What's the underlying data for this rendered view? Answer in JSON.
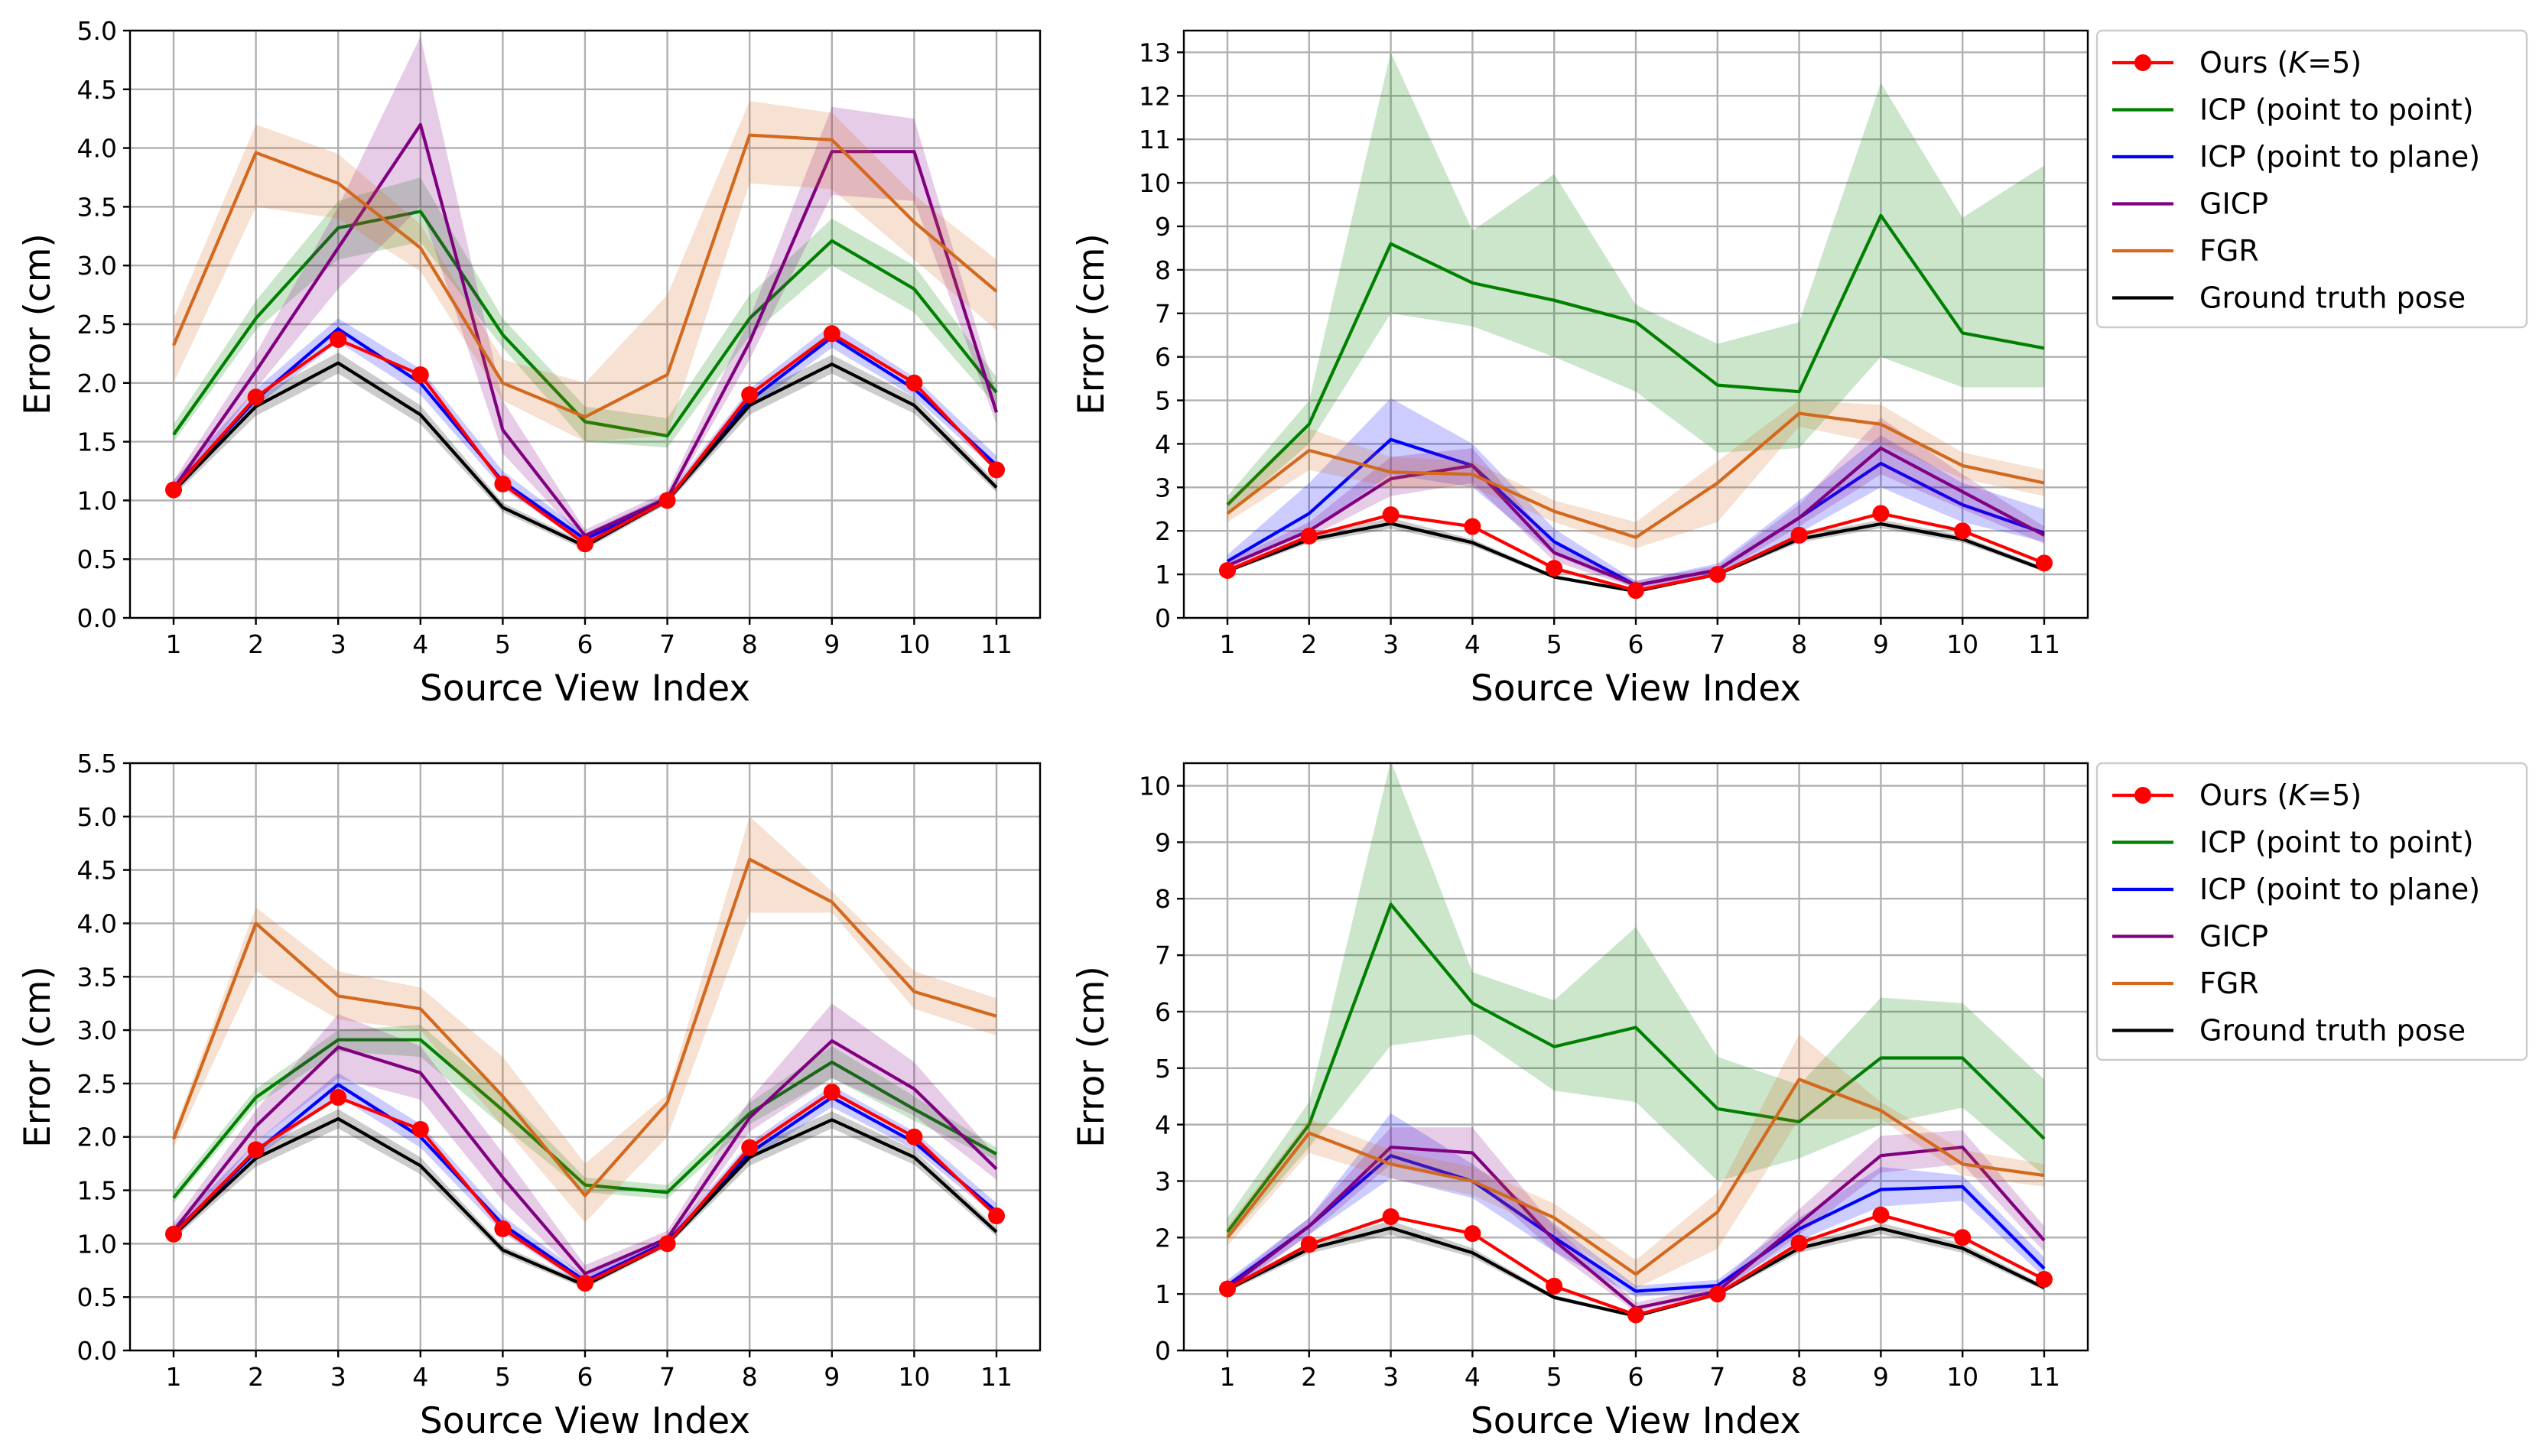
{
  "figure": {
    "type": "line",
    "panel_count": 4
  },
  "colors": {
    "Ours (K=5)": "#ff0000",
    "ICP (point to point)": "#008000",
    "ICP (point to plane)": "#0000ff",
    "GICP": "#800080",
    "FGR": "#d2691e",
    "Ground truth pose": "#000000"
  },
  "legend_entries": [
    {
      "key": "ours",
      "prefix": "Ours (",
      "italic": "K",
      "suffix": "=5)",
      "color": "#ff0000",
      "marker": "circle"
    },
    {
      "key": "icp_pp",
      "label": "ICP (point to point)",
      "color": "#008000"
    },
    {
      "key": "icp_pl",
      "label": "ICP (point to plane)",
      "color": "#0000ff"
    },
    {
      "key": "gicp",
      "label": "GICP",
      "color": "#800080"
    },
    {
      "key": "fgr",
      "label": "FGR",
      "color": "#d2691e"
    },
    {
      "key": "gt",
      "label": "Ground truth pose",
      "color": "#000000"
    }
  ],
  "chart_data": [
    {
      "type": "line",
      "position": "top-left",
      "xlabel": "Source View Index",
      "ylabel": "Error (cm)",
      "x": [
        1,
        2,
        3,
        4,
        5,
        6,
        7,
        8,
        9,
        10,
        11
      ],
      "ylim": [
        0,
        5.0
      ],
      "yticks": [
        "0.0",
        "0.5",
        "1.0",
        "1.5",
        "2.0",
        "2.5",
        "3.0",
        "3.5",
        "4.0",
        "4.5",
        "5.0"
      ],
      "legend": false,
      "series": [
        {
          "name": "ICP (point to point)",
          "values": [
            1.56,
            2.55,
            3.32,
            3.46,
            2.41,
            1.67,
            1.55,
            2.55,
            3.21,
            2.8,
            1.92
          ],
          "band_lower": [
            1.5,
            2.45,
            3.05,
            3.2,
            2.3,
            1.5,
            1.45,
            2.4,
            3.0,
            2.6,
            1.8
          ],
          "band_upper": [
            1.65,
            2.7,
            3.55,
            3.75,
            2.55,
            1.8,
            1.7,
            2.75,
            3.4,
            3.0,
            2.05
          ]
        },
        {
          "name": "ICP (point to plane)",
          "values": [
            1.1,
            1.86,
            2.46,
            2.0,
            1.16,
            0.67,
            1.0,
            1.85,
            2.39,
            1.95,
            1.3
          ],
          "band_lower": [
            1.05,
            1.8,
            2.35,
            1.9,
            1.1,
            0.62,
            0.97,
            1.78,
            2.3,
            1.88,
            1.25
          ],
          "band_upper": [
            1.17,
            1.95,
            2.55,
            2.12,
            1.25,
            0.72,
            1.05,
            1.95,
            2.5,
            2.05,
            1.38
          ]
        },
        {
          "name": "GICP",
          "values": [
            1.1,
            2.1,
            3.15,
            4.2,
            1.6,
            0.7,
            1.02,
            2.35,
            3.97,
            3.97,
            1.75
          ],
          "band_lower": [
            1.05,
            1.95,
            2.8,
            3.5,
            1.4,
            0.65,
            0.98,
            2.2,
            3.6,
            3.55,
            1.65
          ],
          "band_upper": [
            1.17,
            2.25,
            3.5,
            4.95,
            1.85,
            0.75,
            1.08,
            2.55,
            4.35,
            4.25,
            1.9
          ]
        },
        {
          "name": "FGR",
          "values": [
            2.32,
            3.96,
            3.7,
            3.15,
            2.0,
            1.71,
            2.07,
            4.11,
            4.07,
            3.37,
            2.78
          ],
          "band_lower": [
            2.0,
            3.5,
            3.4,
            2.95,
            1.85,
            1.5,
            1.55,
            3.7,
            3.65,
            3.05,
            2.45
          ],
          "band_upper": [
            2.55,
            4.2,
            3.95,
            3.35,
            2.2,
            2.0,
            2.75,
            4.4,
            4.3,
            3.6,
            3.05
          ]
        },
        {
          "name": "Ground truth pose",
          "values": [
            1.08,
            1.8,
            2.17,
            1.73,
            0.94,
            0.61,
            1.0,
            1.81,
            2.16,
            1.81,
            1.11
          ],
          "band_lower": [
            1.04,
            1.72,
            2.08,
            1.65,
            0.9,
            0.58,
            0.97,
            1.73,
            2.08,
            1.74,
            1.07
          ],
          "band_upper": [
            1.12,
            1.88,
            2.26,
            1.81,
            0.98,
            0.64,
            1.03,
            1.89,
            2.24,
            1.88,
            1.15
          ]
        },
        {
          "name": "Ours (K=5)",
          "values": [
            1.09,
            1.88,
            2.37,
            2.07,
            1.14,
            0.63,
            1.0,
            1.9,
            2.42,
            2.0,
            1.26
          ]
        }
      ]
    },
    {
      "type": "line",
      "position": "top-right",
      "xlabel": "Source View Index",
      "ylabel": "Error (cm)",
      "x": [
        1,
        2,
        3,
        4,
        5,
        6,
        7,
        8,
        9,
        10,
        11
      ],
      "ylim": [
        0,
        13.5
      ],
      "yticks": [
        "0",
        "1",
        "2",
        "3",
        "4",
        "5",
        "6",
        "7",
        "8",
        "9",
        "10",
        "11",
        "12",
        "13"
      ],
      "legend": true,
      "series": [
        {
          "name": "ICP (point to point)",
          "values": [
            2.6,
            4.45,
            8.6,
            7.7,
            7.3,
            6.8,
            5.35,
            5.2,
            9.25,
            6.55,
            6.2
          ],
          "band_lower": [
            2.4,
            4.0,
            7.0,
            6.7,
            6.0,
            5.2,
            3.8,
            3.9,
            6.0,
            5.3,
            5.3
          ],
          "band_upper": [
            2.8,
            5.0,
            13.0,
            8.9,
            10.2,
            7.2,
            6.3,
            6.8,
            12.3,
            9.2,
            10.4
          ]
        },
        {
          "name": "ICP (point to plane)",
          "values": [
            1.3,
            2.4,
            4.1,
            3.5,
            1.75,
            0.75,
            1.1,
            2.3,
            3.55,
            2.6,
            1.95
          ],
          "band_lower": [
            1.15,
            2.0,
            3.3,
            3.0,
            1.45,
            0.68,
            1.0,
            1.95,
            3.0,
            2.2,
            1.75
          ],
          "band_upper": [
            1.45,
            3.1,
            5.05,
            4.0,
            2.05,
            0.85,
            1.25,
            2.7,
            4.2,
            3.1,
            2.5
          ]
        },
        {
          "name": "GICP",
          "values": [
            1.2,
            2.0,
            3.2,
            3.5,
            1.5,
            0.75,
            1.1,
            2.3,
            3.9,
            2.9,
            1.9
          ],
          "band_lower": [
            1.1,
            1.85,
            2.8,
            3.1,
            1.3,
            0.68,
            1.0,
            2.1,
            3.3,
            2.5,
            1.7
          ],
          "band_upper": [
            1.3,
            2.2,
            3.7,
            3.9,
            1.7,
            0.85,
            1.2,
            2.6,
            4.6,
            3.3,
            2.1
          ]
        },
        {
          "name": "FGR",
          "values": [
            2.4,
            3.85,
            3.35,
            3.3,
            2.45,
            1.85,
            3.1,
            4.7,
            4.45,
            3.5,
            3.1
          ],
          "band_lower": [
            2.2,
            3.4,
            3.0,
            3.0,
            2.2,
            1.6,
            2.2,
            4.4,
            4.0,
            3.2,
            2.8
          ],
          "band_upper": [
            2.7,
            4.35,
            3.7,
            3.6,
            2.7,
            2.2,
            3.6,
            5.0,
            4.9,
            3.8,
            3.4
          ]
        },
        {
          "name": "Ground truth pose",
          "values": [
            1.08,
            1.8,
            2.17,
            1.73,
            0.94,
            0.61,
            1.0,
            1.81,
            2.16,
            1.81,
            1.11
          ],
          "band_lower": [
            1.03,
            1.72,
            2.05,
            1.65,
            0.9,
            0.58,
            0.96,
            1.73,
            2.06,
            1.73,
            1.06
          ],
          "band_upper": [
            1.13,
            1.88,
            2.3,
            1.81,
            0.98,
            0.64,
            1.04,
            1.89,
            2.26,
            1.89,
            1.16
          ]
        },
        {
          "name": "Ours (K=5)",
          "values": [
            1.09,
            1.88,
            2.37,
            2.1,
            1.14,
            0.63,
            1.0,
            1.9,
            2.4,
            2.0,
            1.26
          ]
        }
      ]
    },
    {
      "type": "line",
      "position": "bottom-left",
      "xlabel": "Source View Index",
      "ylabel": "Error (cm)",
      "x": [
        1,
        2,
        3,
        4,
        5,
        6,
        7,
        8,
        9,
        10,
        11
      ],
      "ylim": [
        0,
        5.5
      ],
      "yticks": [
        "0.0",
        "0.5",
        "1.0",
        "1.5",
        "2.0",
        "2.5",
        "3.0",
        "3.5",
        "4.0",
        "4.5",
        "5.0",
        "5.5"
      ],
      "legend": false,
      "series": [
        {
          "name": "ICP (point to point)",
          "values": [
            1.43,
            2.37,
            2.91,
            2.91,
            2.25,
            1.55,
            1.48,
            2.22,
            2.7,
            2.26,
            1.84
          ],
          "band_lower": [
            1.38,
            2.3,
            2.8,
            2.75,
            2.1,
            1.48,
            1.42,
            2.12,
            2.55,
            2.15,
            1.78
          ],
          "band_upper": [
            1.5,
            2.45,
            3.0,
            3.05,
            2.4,
            1.62,
            1.55,
            2.32,
            2.85,
            2.38,
            1.9
          ]
        },
        {
          "name": "ICP (point to plane)",
          "values": [
            1.1,
            1.86,
            2.49,
            2.0,
            1.18,
            0.65,
            1.02,
            1.85,
            2.37,
            1.95,
            1.3
          ],
          "band_lower": [
            1.05,
            1.8,
            2.38,
            1.9,
            1.1,
            0.6,
            0.98,
            1.78,
            2.28,
            1.88,
            1.25
          ],
          "band_upper": [
            1.17,
            1.95,
            2.6,
            2.12,
            1.26,
            0.7,
            1.06,
            1.95,
            2.48,
            2.05,
            1.38
          ]
        },
        {
          "name": "GICP",
          "values": [
            1.12,
            2.1,
            2.84,
            2.6,
            1.62,
            0.72,
            1.05,
            2.18,
            2.9,
            2.45,
            1.7
          ],
          "band_lower": [
            1.05,
            1.95,
            2.55,
            2.35,
            1.4,
            0.65,
            0.98,
            2.05,
            2.55,
            2.2,
            1.6
          ],
          "band_upper": [
            1.2,
            2.25,
            3.15,
            2.85,
            1.85,
            0.8,
            1.12,
            2.35,
            3.25,
            2.7,
            1.82
          ]
        },
        {
          "name": "FGR",
          "values": [
            1.98,
            4.0,
            3.32,
            3.2,
            2.38,
            1.45,
            2.32,
            4.6,
            4.2,
            3.36,
            3.13
          ],
          "band_lower": [
            1.9,
            3.55,
            3.1,
            3.0,
            2.1,
            1.2,
            2.0,
            4.1,
            4.1,
            3.2,
            2.95
          ],
          "band_upper": [
            2.05,
            4.15,
            3.55,
            3.4,
            2.75,
            1.75,
            2.4,
            5.0,
            4.3,
            3.55,
            3.3
          ]
        },
        {
          "name": "Ground truth pose",
          "values": [
            1.08,
            1.8,
            2.17,
            1.73,
            0.94,
            0.61,
            1.0,
            1.81,
            2.16,
            1.81,
            1.11
          ],
          "band_lower": [
            1.04,
            1.72,
            2.08,
            1.65,
            0.9,
            0.58,
            0.97,
            1.73,
            2.08,
            1.74,
            1.07
          ],
          "band_upper": [
            1.12,
            1.88,
            2.26,
            1.81,
            0.98,
            0.64,
            1.03,
            1.89,
            2.24,
            1.88,
            1.15
          ]
        },
        {
          "name": "Ours (K=5)",
          "values": [
            1.09,
            1.88,
            2.37,
            2.07,
            1.14,
            0.63,
            1.0,
            1.9,
            2.42,
            2.0,
            1.26
          ]
        }
      ]
    },
    {
      "type": "line",
      "position": "bottom-right",
      "xlabel": "Source View Index",
      "ylabel": "Error (cm)",
      "x": [
        1,
        2,
        3,
        4,
        5,
        6,
        7,
        8,
        9,
        10,
        11
      ],
      "ylim": [
        0,
        10.4
      ],
      "yticks": [
        "0",
        "1",
        "2",
        "3",
        "4",
        "5",
        "6",
        "7",
        "8",
        "9",
        "10"
      ],
      "legend": true,
      "series": [
        {
          "name": "ICP (point to point)",
          "values": [
            2.1,
            4.0,
            7.9,
            6.15,
            5.38,
            5.72,
            4.28,
            4.05,
            5.18,
            5.18,
            3.75
          ],
          "band_lower": [
            1.95,
            3.6,
            5.4,
            5.6,
            4.6,
            4.4,
            3.0,
            3.4,
            4.0,
            4.3,
            3.1
          ],
          "band_upper": [
            2.35,
            4.4,
            10.45,
            6.7,
            6.2,
            7.5,
            5.2,
            4.7,
            6.25,
            6.15,
            4.8
          ]
        },
        {
          "name": "ICP (point to plane)",
          "values": [
            1.15,
            2.2,
            3.45,
            3.0,
            2.0,
            1.05,
            1.15,
            2.15,
            2.85,
            2.9,
            1.45
          ],
          "band_lower": [
            1.05,
            2.05,
            3.05,
            2.7,
            1.75,
            0.95,
            1.05,
            1.95,
            2.55,
            2.65,
            1.3
          ],
          "band_upper": [
            1.25,
            2.35,
            4.2,
            3.3,
            2.25,
            1.15,
            1.25,
            2.35,
            3.25,
            3.1,
            1.65
          ]
        },
        {
          "name": "GICP",
          "values": [
            1.1,
            2.2,
            3.6,
            3.5,
            1.95,
            0.75,
            1.05,
            2.25,
            3.45,
            3.6,
            1.95
          ],
          "band_lower": [
            1.0,
            2.05,
            3.3,
            3.05,
            1.75,
            0.68,
            0.98,
            2.05,
            3.15,
            3.3,
            1.75
          ],
          "band_upper": [
            1.2,
            2.35,
            3.95,
            3.95,
            2.2,
            0.85,
            1.15,
            2.5,
            3.8,
            3.9,
            2.2
          ]
        },
        {
          "name": "FGR",
          "values": [
            2.0,
            3.85,
            3.3,
            3.0,
            2.35,
            1.35,
            2.45,
            4.8,
            4.25,
            3.3,
            3.1
          ],
          "band_lower": [
            1.85,
            3.5,
            3.05,
            2.75,
            2.1,
            1.1,
            1.8,
            4.1,
            4.1,
            3.1,
            2.9
          ],
          "band_upper": [
            2.2,
            4.1,
            3.55,
            3.25,
            2.6,
            1.6,
            2.8,
            5.6,
            4.4,
            3.55,
            3.3
          ]
        },
        {
          "name": "Ground truth pose",
          "values": [
            1.08,
            1.8,
            2.17,
            1.73,
            0.94,
            0.61,
            1.0,
            1.81,
            2.16,
            1.81,
            1.11
          ],
          "band_lower": [
            1.03,
            1.72,
            2.05,
            1.65,
            0.9,
            0.58,
            0.96,
            1.73,
            2.06,
            1.73,
            1.06
          ],
          "band_upper": [
            1.13,
            1.88,
            2.3,
            1.81,
            0.98,
            0.64,
            1.04,
            1.89,
            2.26,
            1.89,
            1.16
          ]
        },
        {
          "name": "Ours (K=5)",
          "values": [
            1.09,
            1.88,
            2.37,
            2.07,
            1.14,
            0.63,
            1.0,
            1.9,
            2.4,
            2.0,
            1.26
          ]
        }
      ]
    }
  ]
}
